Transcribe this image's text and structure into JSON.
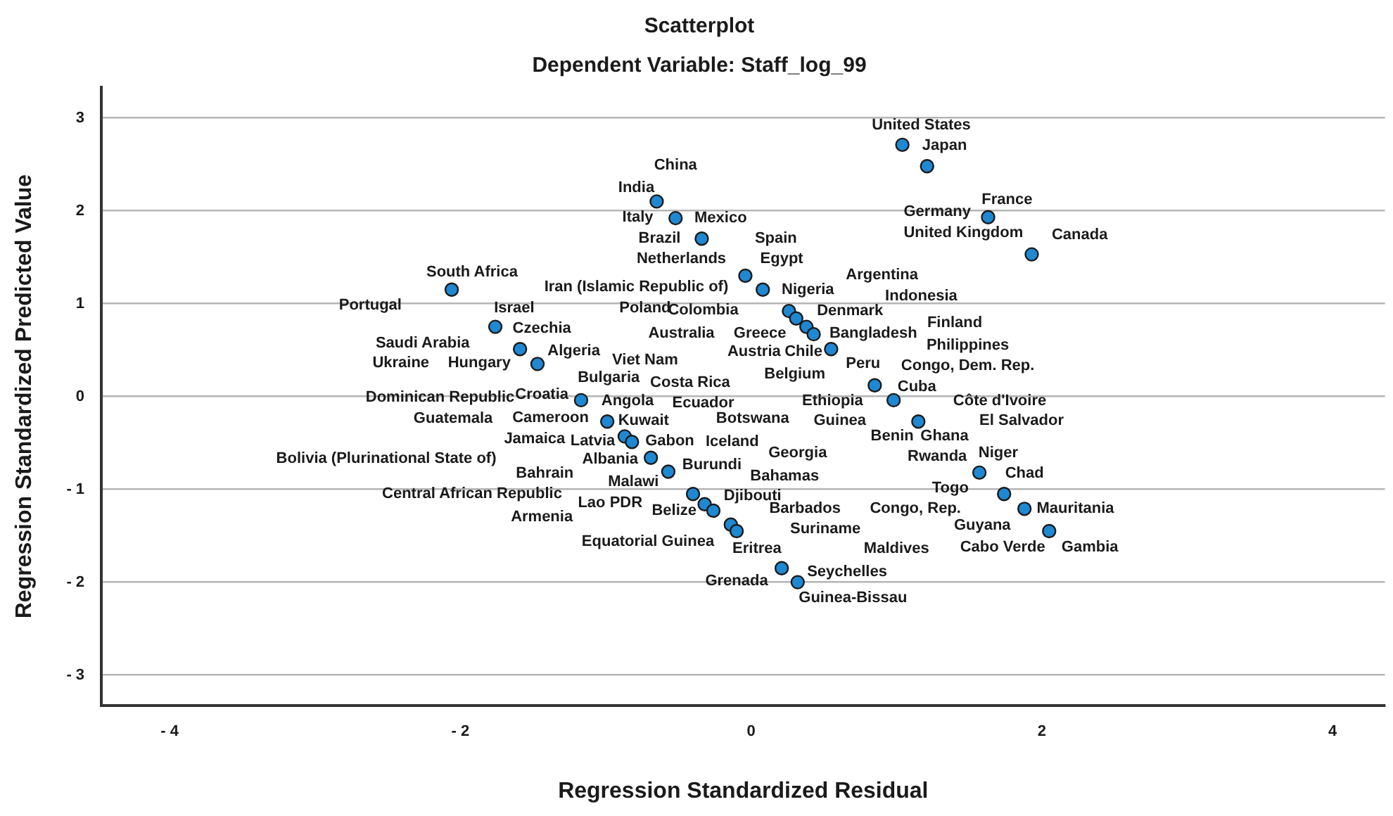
{
  "chart_data": {
    "type": "scatter",
    "title": "Scatterplot",
    "subtitle": "Dependent Variable: Staff_log_99",
    "xlabel": "Regression Standardized Residual",
    "ylabel": "Regression Standardized Predicted Value",
    "xlim": [
      -4.47,
      4.36
    ],
    "ylim": [
      -3.33,
      3.33
    ],
    "xticks": [
      {
        "value": -4,
        "label": "- 4"
      },
      {
        "value": -2,
        "label": "- 2"
      },
      0,
      2,
      4
    ],
    "yticks": [
      {
        "value": -3,
        "label": "- 3"
      },
      {
        "value": -2,
        "label": "- 2"
      },
      {
        "value": -1,
        "label": "- 1"
      },
      0,
      1,
      2,
      3
    ],
    "grid": "y",
    "legend": false,
    "marker": "circle",
    "series": [
      {
        "color": "#1e88d2",
        "x": [
          -0.65,
          -0.52,
          -0.34,
          -0.04,
          0.08,
          -2.06,
          -1.76,
          -1.59,
          -1.47,
          0.26,
          0.31,
          0.38,
          0.43,
          0.55,
          -1.17,
          1.04,
          1.21,
          1.63,
          1.93,
          0.85,
          0.98,
          -0.99,
          -0.87,
          -0.82,
          -0.69,
          -0.57,
          -0.4,
          -0.32,
          -0.26,
          -0.14,
          -0.1,
          0.21,
          0.32,
          1.15,
          1.57,
          1.74,
          1.88,
          2.05
        ],
        "values": [
          2.1,
          1.92,
          1.7,
          1.3,
          1.15,
          1.15,
          0.75,
          0.51,
          0.35,
          0.92,
          0.84,
          0.75,
          0.67,
          0.51,
          -0.04,
          2.71,
          2.48,
          1.93,
          1.53,
          0.12,
          -0.04,
          -0.27,
          -0.43,
          -0.49,
          -0.66,
          -0.81,
          -1.05,
          -1.16,
          -1.23,
          -1.38,
          -1.45,
          -1.85,
          -2.0,
          -0.27,
          -0.82,
          -1.05,
          -1.21,
          -1.45
        ]
      }
    ],
    "annotations": [
      "United States",
      "Japan",
      "China",
      "India",
      "Germany",
      "France",
      "Italy",
      "Mexico",
      "Brazil",
      "Spain",
      "United Kingdom",
      "Canada",
      "Netherlands",
      "Egypt",
      "Argentina",
      "South Africa",
      "Iran (Islamic Republic of)",
      "Nigeria",
      "Indonesia",
      "Portugal",
      "Israel",
      "Poland",
      "Colombia",
      "Denmark",
      "Finland",
      "Czechia",
      "Australia",
      "Greece",
      "Bangladesh",
      "Philippines",
      "Saudi Arabia",
      "Algeria",
      "Austria",
      "Chile",
      "Ukraine",
      "Hungary",
      "Viet Nam",
      "Peru",
      "Congo, Dem. Rep.",
      "Belgium",
      "Bulgaria",
      "Costa Rica",
      "Cuba",
      "Dominican Republic",
      "Croatia",
      "Angola",
      "Ecuador",
      "Ethiopia",
      "Côte d'Ivoire",
      "Guatemala",
      "Cameroon",
      "Kuwait",
      "Botswana",
      "Guinea",
      "El Salvador",
      "Jamaica",
      "Latvia",
      "Gabon",
      "Iceland",
      "Benin",
      "Ghana",
      "Georgia",
      "Bolivia (Plurinational State of)",
      "Albania",
      "Rwanda",
      "Niger",
      "Burundi",
      "Bahrain",
      "Malawi",
      "Bahamas",
      "Chad",
      "Togo",
      "Central African Republic",
      "Djibouti",
      "Lao PDR",
      "Belize",
      "Barbados",
      "Congo, Rep.",
      "Mauritania",
      "Armenia",
      "Guyana",
      "Suriname",
      "Equatorial Guinea",
      "Eritrea",
      "Maldives",
      "Cabo Verde",
      "Gambia",
      "Seychelles",
      "Grenada",
      "Guinea-Bissau"
    ]
  }
}
